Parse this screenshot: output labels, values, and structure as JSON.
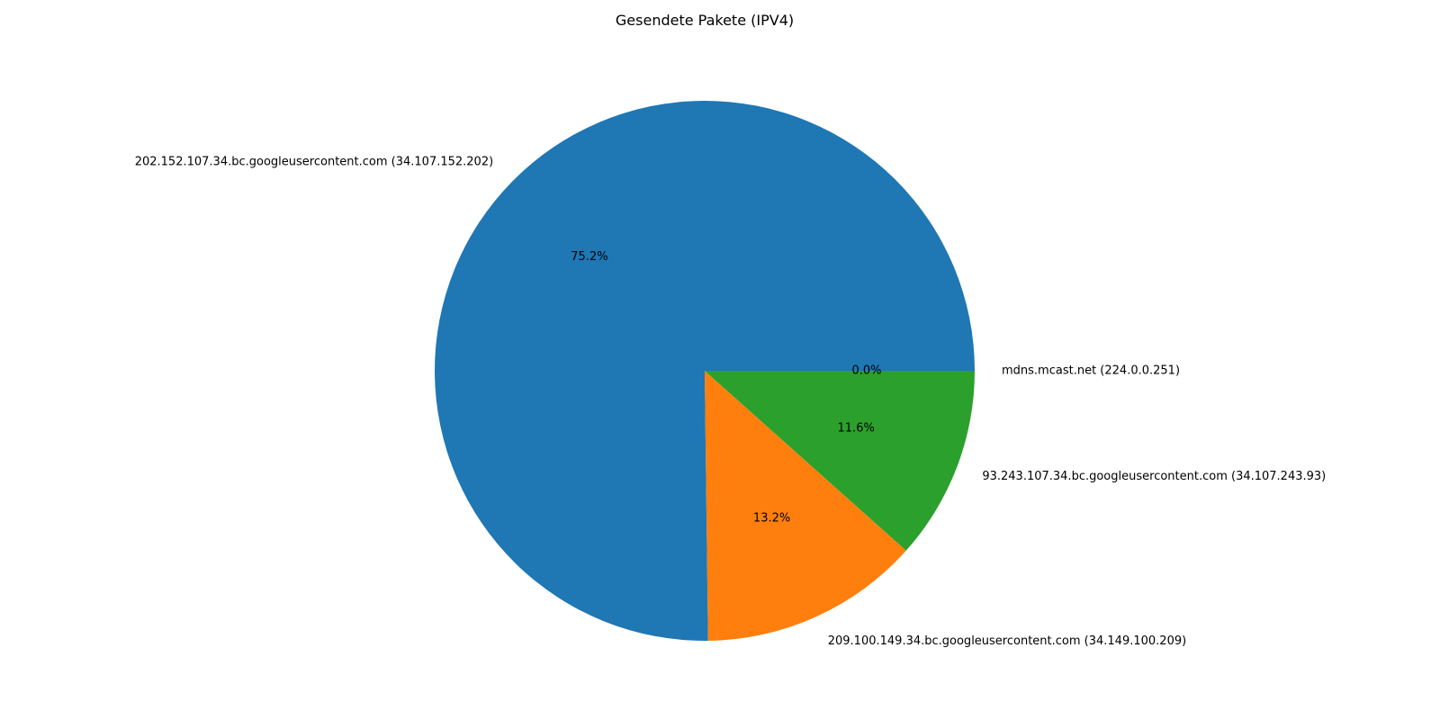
{
  "chart_data": {
    "type": "pie",
    "title": "Gesendete Pakete (IPV4)",
    "start_angle_deg": 0,
    "direction": "counterclockwise",
    "slices": [
      {
        "label": "202.152.107.34.bc.googleusercontent.com (34.107.152.202)",
        "value": 75.2,
        "pct_label": "75.2%",
        "color": "#1f77b4"
      },
      {
        "label": "209.100.149.34.bc.googleusercontent.com (34.149.100.209)",
        "value": 13.2,
        "pct_label": "13.2%",
        "color": "#ff7f0e"
      },
      {
        "label": "93.243.107.34.bc.googleusercontent.com (34.107.243.93)",
        "value": 11.6,
        "pct_label": "11.6%",
        "color": "#2ca02c"
      },
      {
        "label": "mdns.mcast.net (224.0.0.251)",
        "value": 0.0,
        "pct_label": "0.0%",
        "color": "#d62728"
      }
    ]
  }
}
